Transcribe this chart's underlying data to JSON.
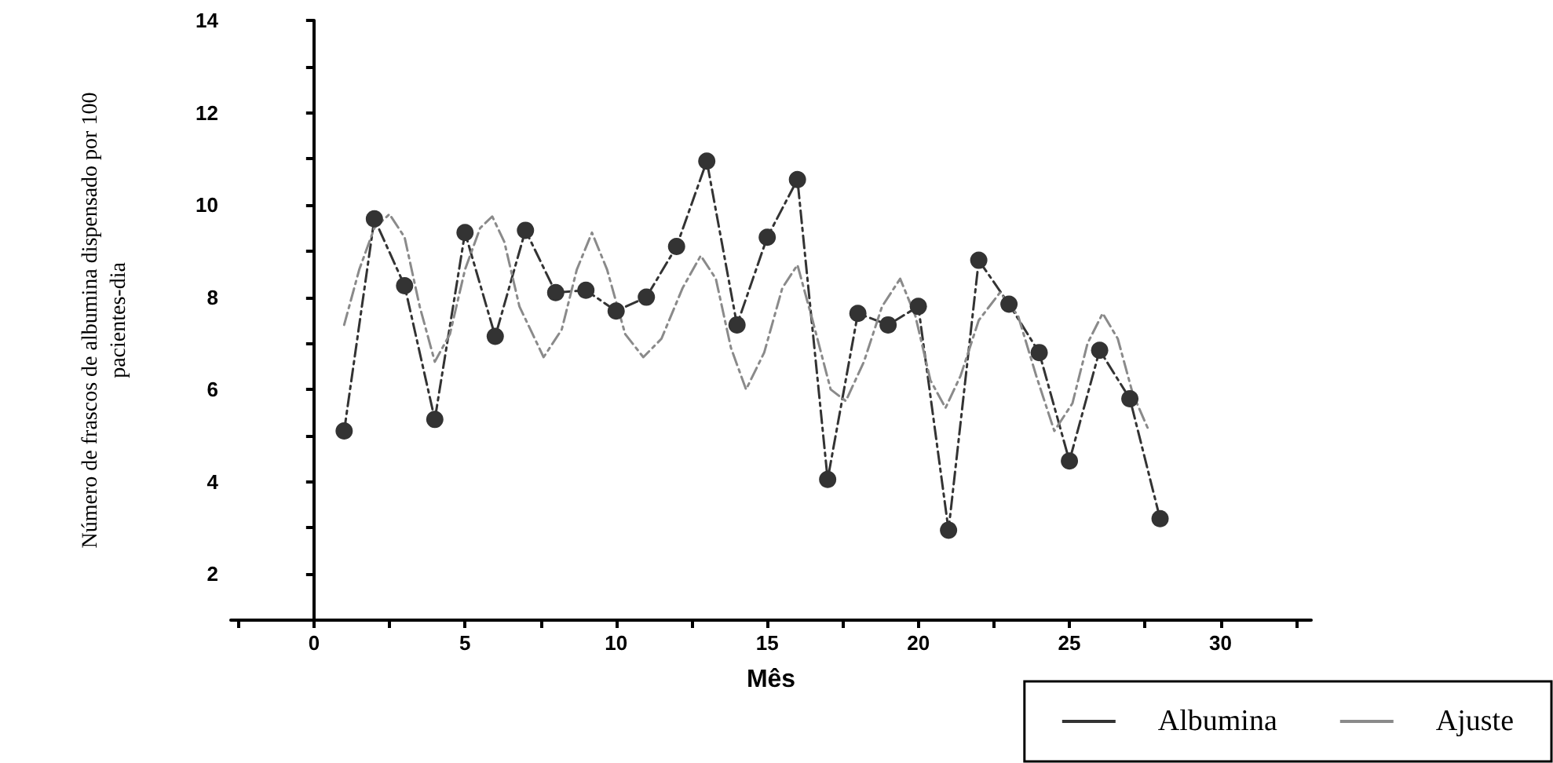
{
  "chart_data": {
    "type": "line",
    "xlabel": "Mês",
    "ylabel": "Número de frascos de albumina dispensado por 100\npacientes-dia",
    "xlim": [
      -2.75,
      33
    ],
    "ylim": [
      1,
      14
    ],
    "xticks": [
      {
        "value": -2.5,
        "label": null
      },
      0,
      {
        "value": 2.5,
        "label": null
      },
      5,
      {
        "value": 7.5,
        "label": null
      },
      10,
      {
        "value": 12.5,
        "label": null
      },
      15,
      {
        "value": 17.5,
        "label": null
      },
      20,
      {
        "value": 22.5,
        "label": null
      },
      25,
      {
        "value": 27.5,
        "label": null
      },
      30,
      {
        "value": 32.5,
        "label": null
      }
    ],
    "yticks": [
      {
        "value": 1,
        "label": null
      },
      2,
      {
        "value": 3,
        "label": null
      },
      4,
      {
        "value": 5,
        "label": null
      },
      6,
      {
        "value": 7,
        "label": null
      },
      8,
      {
        "value": 9,
        "label": null
      },
      10,
      {
        "value": 11,
        "label": null
      },
      12,
      {
        "value": 13,
        "label": null
      },
      14
    ],
    "legend": "bottom right",
    "series": [
      {
        "name": "Albumina",
        "color": "#333333",
        "marker": "circle",
        "line_style": "dashed",
        "x": [
          1,
          2,
          3,
          4,
          5,
          6,
          7,
          8,
          9,
          10,
          11,
          12,
          13,
          14,
          15,
          16,
          17,
          18,
          19,
          20,
          21,
          22,
          23,
          24,
          25,
          26,
          27,
          28
        ],
        "values": [
          5.1,
          9.7,
          8.25,
          5.35,
          9.4,
          7.15,
          9.45,
          8.1,
          8.15,
          7.7,
          8.0,
          9.1,
          10.95,
          7.4,
          9.3,
          10.55,
          4.05,
          7.65,
          7.4,
          7.8,
          2.95,
          8.8,
          7.85,
          6.8,
          4.45,
          6.85,
          5.8,
          3.2
        ]
      },
      {
        "name": "Ajuste",
        "color": "#8a8a8a",
        "marker": "none",
        "line_style": "dashed",
        "x": [
          1,
          1.5,
          2,
          2.5,
          3,
          3.5,
          4,
          4.5,
          5,
          5.5,
          5.9,
          6.3,
          6.8,
          7.6,
          8.2,
          8.7,
          9.2,
          9.7,
          10.3,
          10.9,
          11.5,
          12.2,
          12.8,
          13.3,
          13.8,
          14.3,
          14.9,
          15.5,
          16,
          16.5,
          17.1,
          17.6,
          18.2,
          18.8,
          19.4,
          19.9,
          20.4,
          20.9,
          21.4,
          22,
          22.7,
          23.3,
          23.9,
          24.5,
          25.1,
          25.6,
          26.1,
          26.6,
          27.1,
          27.6
        ],
        "values": [
          7.4,
          8.6,
          9.5,
          9.8,
          9.3,
          7.8,
          6.6,
          7.2,
          8.6,
          9.5,
          9.75,
          9.2,
          7.8,
          6.7,
          7.3,
          8.6,
          9.4,
          8.6,
          7.2,
          6.7,
          7.1,
          8.2,
          8.9,
          8.4,
          6.9,
          6.0,
          6.8,
          8.2,
          8.7,
          7.5,
          6.0,
          5.75,
          6.6,
          7.8,
          8.4,
          7.6,
          6.2,
          5.6,
          6.3,
          7.5,
          8.1,
          7.6,
          6.3,
          5.1,
          5.7,
          7.0,
          7.65,
          7.1,
          5.9,
          5.15
        ]
      }
    ]
  }
}
